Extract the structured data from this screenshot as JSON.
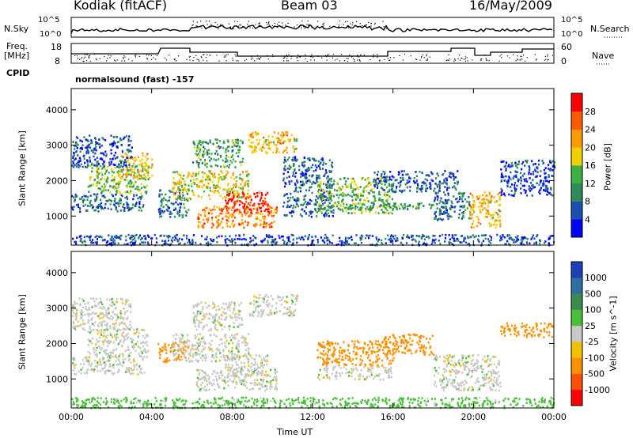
{
  "header": {
    "station": "Kodiak (fitACF)",
    "beam": "Beam 03",
    "date": "16/May/2009"
  },
  "strip_labels": {
    "nsky": "N.Sky",
    "nsky_ticks": [
      "10^5",
      "10^0"
    ],
    "nsearch": "N.Search",
    "nsearch_ticks": [
      "10^5",
      "10^0"
    ],
    "freq": "Freq.",
    "freq_unit": "[MHz]",
    "freq_ticks": [
      "18",
      "8"
    ],
    "nave": "Nave",
    "nave_ticks": [
      "60",
      "0"
    ],
    "cpid": "CPID",
    "cpid_value": "normalsound (fast) -157"
  },
  "chart_data": [
    {
      "type": "heatmap",
      "name": "power",
      "xlabel": "",
      "ylabel": "Slant Range [km]",
      "xlim": [
        0,
        24
      ],
      "ylim": [
        180,
        4600
      ],
      "x_ticks": [
        "00:00",
        "04:00",
        "08:00",
        "12:00",
        "16:00",
        "20:00",
        "00:00"
      ],
      "y_ticks": [
        1000,
        2000,
        3000,
        4000
      ],
      "colorbar": {
        "label": "Power [dB]",
        "ticks": [
          4,
          8,
          12,
          16,
          20,
          24,
          28
        ],
        "colors": [
          "#0000ff",
          "#1d4fb0",
          "#2f8a5a",
          "#3cb043",
          "#f0d000",
          "#ff9b00",
          "#ff5a00",
          "#ff0000"
        ]
      },
      "regions": [
        {
          "t": [
            0.0,
            3.6
          ],
          "r": [
            1150,
            1650
          ],
          "v": 8
        },
        {
          "t": [
            0.8,
            3.8
          ],
          "r": [
            1650,
            2450
          ],
          "v": 14
        },
        {
          "t": [
            2.4,
            4.0
          ],
          "r": [
            2100,
            2800
          ],
          "v": 20
        },
        {
          "t": [
            0.0,
            3.0
          ],
          "r": [
            2400,
            3300
          ],
          "v": 6
        },
        {
          "t": [
            4.3,
            5.8
          ],
          "r": [
            950,
            1800
          ],
          "v": 8
        },
        {
          "t": [
            5.0,
            8.8
          ],
          "r": [
            1500,
            2300
          ],
          "v": 18
        },
        {
          "t": [
            6.2,
            10.2
          ],
          "r": [
            700,
            1300
          ],
          "v": 24
        },
        {
          "t": [
            7.6,
            9.8
          ],
          "r": [
            1100,
            1700
          ],
          "v": 30
        },
        {
          "t": [
            8.8,
            11.2
          ],
          "r": [
            2800,
            3400
          ],
          "v": 20
        },
        {
          "t": [
            6.0,
            8.5
          ],
          "r": [
            2400,
            3200
          ],
          "v": 12
        },
        {
          "t": [
            10.5,
            13.0
          ],
          "r": [
            1000,
            2700
          ],
          "v": 7
        },
        {
          "t": [
            12.2,
            16.0
          ],
          "r": [
            1100,
            2100
          ],
          "v": 14
        },
        {
          "t": [
            13.5,
            18.0
          ],
          "r": [
            1200,
            1400
          ],
          "v": 12
        },
        {
          "t": [
            15.0,
            19.2
          ],
          "r": [
            1700,
            2300
          ],
          "v": 7
        },
        {
          "t": [
            18.0,
            19.8
          ],
          "r": [
            900,
            1700
          ],
          "v": 8
        },
        {
          "t": [
            19.8,
            21.3
          ],
          "r": [
            700,
            1700
          ],
          "v": 20
        },
        {
          "t": [
            21.3,
            24.0
          ],
          "r": [
            1600,
            2600
          ],
          "v": 5
        },
        {
          "t": [
            0.0,
            24.0
          ],
          "r": [
            200,
            500
          ],
          "v": 6
        }
      ]
    },
    {
      "type": "heatmap",
      "name": "velocity",
      "xlabel": "Time UT",
      "ylabel": "Slant Range [km]",
      "xlim": [
        0,
        24
      ],
      "ylim": [
        180,
        4600
      ],
      "x_ticks": [
        "00:00",
        "04:00",
        "08:00",
        "12:00",
        "16:00",
        "20:00",
        "00:00"
      ],
      "y_ticks": [
        1000,
        2000,
        3000,
        4000
      ],
      "colorbar": {
        "label": "Velocity [m s^-1]",
        "ticks": [
          "1000",
          "500",
          "100",
          "25",
          "-25",
          "-100",
          "-500",
          "-1000"
        ],
        "colors": [
          "#1f3fb8",
          "#2e6ea0",
          "#3b8a4e",
          "#49c039",
          "#c8c8c8",
          "#f2c000",
          "#ff9000",
          "#ff5000",
          "#ff0000"
        ]
      },
      "regions": [
        {
          "t": [
            0.0,
            3.6
          ],
          "r": [
            1150,
            1650
          ],
          "v": 0
        },
        {
          "t": [
            0.8,
            3.8
          ],
          "r": [
            1650,
            2450
          ],
          "v": 0
        },
        {
          "t": [
            0.0,
            3.0
          ],
          "r": [
            2400,
            3300
          ],
          "v": 0
        },
        {
          "t": [
            4.3,
            5.8
          ],
          "r": [
            1500,
            2100
          ],
          "v": -300
        },
        {
          "t": [
            5.0,
            8.8
          ],
          "r": [
            1500,
            2300
          ],
          "v": 0
        },
        {
          "t": [
            6.2,
            10.2
          ],
          "r": [
            700,
            1300
          ],
          "v": 0
        },
        {
          "t": [
            7.6,
            9.8
          ],
          "r": [
            1100,
            1700
          ],
          "v": 0
        },
        {
          "t": [
            8.8,
            11.2
          ],
          "r": [
            2800,
            3400
          ],
          "v": 0
        },
        {
          "t": [
            6.0,
            8.5
          ],
          "r": [
            2400,
            3200
          ],
          "v": 0
        },
        {
          "t": [
            12.2,
            16.0
          ],
          "r": [
            1400,
            2100
          ],
          "v": -200
        },
        {
          "t": [
            12.2,
            16.0
          ],
          "r": [
            1000,
            1400
          ],
          "v": 0
        },
        {
          "t": [
            15.5,
            18.0
          ],
          "r": [
            1700,
            2300
          ],
          "v": -200
        },
        {
          "t": [
            18.0,
            21.3
          ],
          "r": [
            700,
            1700
          ],
          "v": 0
        },
        {
          "t": [
            21.3,
            24.0
          ],
          "r": [
            2200,
            2600
          ],
          "v": -200
        },
        {
          "t": [
            0.0,
            24.0
          ],
          "r": [
            200,
            500
          ],
          "v": 50
        }
      ]
    }
  ]
}
